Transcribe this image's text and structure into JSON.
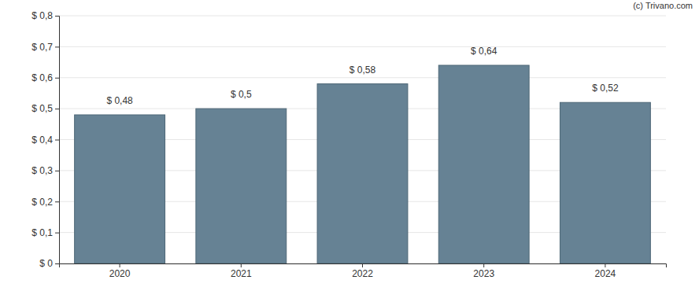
{
  "chart_data": {
    "type": "bar",
    "annotations": [
      "(c) Trivano.com"
    ],
    "categories": [
      "2020",
      "2021",
      "2022",
      "2023",
      "2024"
    ],
    "values": [
      0.48,
      0.5,
      0.58,
      0.64,
      0.52
    ],
    "value_labels": [
      "$ 0,48",
      "$ 0,5",
      "$ 0,58",
      "$ 0,64",
      "$ 0,52"
    ],
    "data_labels": true,
    "color": "#668294",
    "ylim": [
      0,
      0.8
    ],
    "yticks": [
      {
        "value": 0,
        "label": "$ 0"
      },
      {
        "value": 0.1,
        "label": "$ 0,1"
      },
      {
        "value": 0.2,
        "label": "$ 0,2"
      },
      {
        "value": 0.3,
        "label": "$ 0,3"
      },
      {
        "value": 0.4,
        "label": "$ 0,4"
      },
      {
        "value": 0.5,
        "label": "$ 0,5"
      },
      {
        "value": 0.6,
        "label": "$ 0,6"
      },
      {
        "value": 0.7,
        "label": "$ 0,7"
      },
      {
        "value": 0.8,
        "label": "$ 0,8"
      }
    ],
    "grid": true
  }
}
